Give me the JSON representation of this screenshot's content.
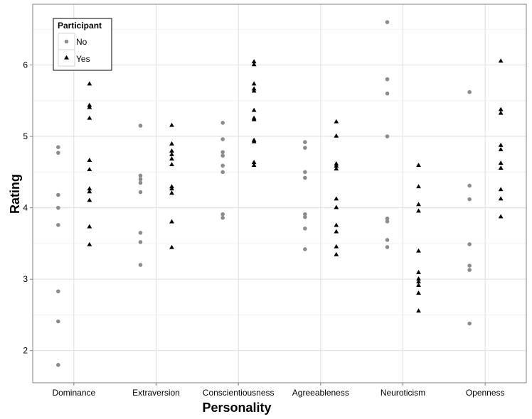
{
  "chart_data": {
    "type": "scatter",
    "title": "",
    "xlabel": "Personality",
    "ylabel": "Rating",
    "categories": [
      "Dominance",
      "Extraversion",
      "Conscientiousness",
      "Agreeableness",
      "Neuroticism",
      "Openness"
    ],
    "y_ticks": [
      "2",
      "3",
      "4",
      "5",
      "6"
    ],
    "ylim": [
      1.55,
      6.85
    ],
    "grid": true,
    "legend": {
      "title": "Participant",
      "placement": "top-left"
    },
    "series": [
      {
        "name": "No",
        "marker": "circle",
        "color": "#8c8c8c",
        "values": [
          [
            4.85,
            4.77,
            4.18,
            4.0,
            3.76,
            2.83,
            2.41,
            1.8
          ],
          [
            5.15,
            4.45,
            4.4,
            4.35,
            4.22,
            3.65,
            3.52,
            3.2
          ],
          [
            5.19,
            4.96,
            4.78,
            4.73,
            4.59,
            4.5,
            3.91,
            3.86
          ],
          [
            4.92,
            4.84,
            4.5,
            4.42,
            3.91,
            3.87,
            3.71,
            3.42
          ],
          [
            6.6,
            5.8,
            5.6,
            5.0,
            3.85,
            3.81,
            3.55,
            3.45
          ],
          [
            5.62,
            4.31,
            4.12,
            3.49,
            3.19,
            3.13,
            2.38
          ]
        ]
      },
      {
        "name": "Yes",
        "marker": "triangle",
        "color": "#000000",
        "values": [
          [
            5.74,
            5.44,
            5.41,
            5.26,
            4.67,
            4.54,
            4.27,
            4.23,
            4.11,
            3.74,
            3.49
          ],
          [
            5.16,
            4.9,
            4.8,
            4.75,
            4.69,
            4.61,
            4.3,
            4.27,
            4.21,
            3.81,
            3.45
          ],
          [
            6.05,
            6.01,
            5.74,
            5.67,
            5.64,
            5.37,
            5.26,
            5.24,
            4.95,
            4.93,
            4.64,
            4.6
          ],
          [
            5.21,
            5.01,
            4.62,
            4.59,
            4.55,
            4.13,
            4.01,
            3.76,
            3.67,
            3.46,
            3.35
          ],
          [
            4.6,
            4.3,
            4.05,
            3.96,
            3.4,
            3.1,
            3.01,
            2.97,
            2.92,
            2.81,
            2.56
          ],
          [
            6.06,
            5.38,
            5.33,
            4.88,
            4.82,
            4.63,
            4.56,
            4.26,
            4.13,
            3.88
          ]
        ]
      }
    ]
  }
}
